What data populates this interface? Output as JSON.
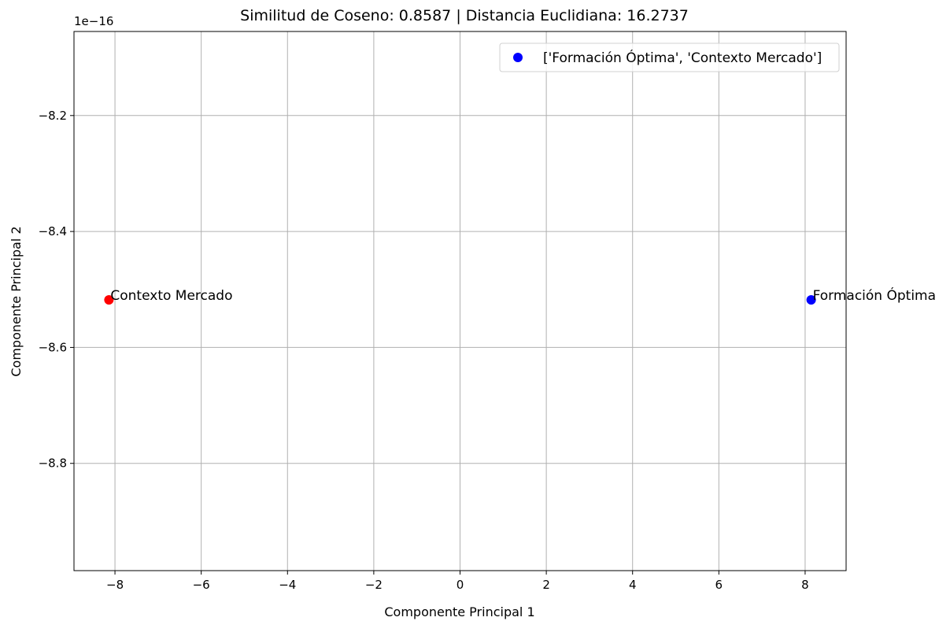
{
  "chart_data": {
    "type": "scatter",
    "title": "Similitud de Coseno: 0.8587 | Distancia Euclidiana: 16.2737",
    "xlabel": "Componente Principal 1",
    "ylabel": "Componente Principal 2",
    "y_offset_label": "1e−16",
    "xlim": [
      -8.95,
      8.95
    ],
    "ylim": [
      -8.985,
      -8.055
    ],
    "x_ticks": [
      -8,
      -6,
      -4,
      -2,
      0,
      2,
      4,
      6,
      8
    ],
    "x_tick_labels": [
      "−8",
      "−6",
      "−4",
      "−2",
      "0",
      "2",
      "4",
      "6",
      "8"
    ],
    "y_ticks": [
      -8.2,
      -8.4,
      -8.6,
      -8.8
    ],
    "y_tick_labels": [
      "−8.2",
      "−8.4",
      "−8.6",
      "−8.8"
    ],
    "grid": true,
    "legend_position": "top-right",
    "legend": [
      {
        "label": "['Formación Óptima', 'Contexto Mercado']",
        "color": "#0000ff"
      }
    ],
    "points": [
      {
        "label": "Contexto Mercado",
        "x": -8.14,
        "y": -8.518,
        "color": "#ff0000"
      },
      {
        "label": "Formación Óptima",
        "x": 8.14,
        "y": -8.518,
        "color": "#0000ff"
      }
    ]
  }
}
